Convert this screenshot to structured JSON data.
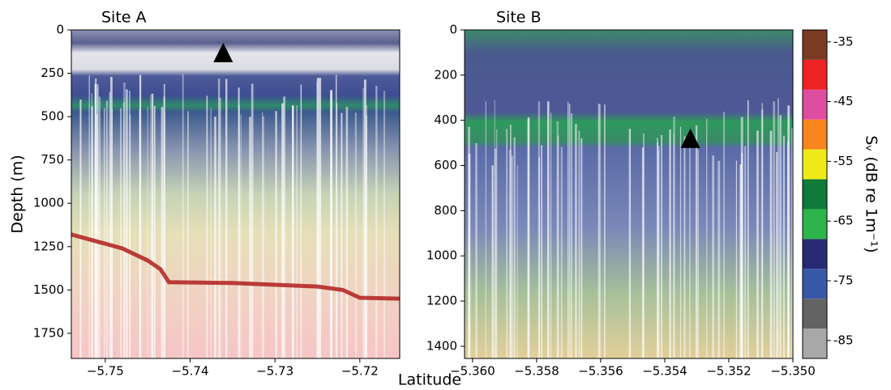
{
  "chart_data": [
    {
      "type": "echogram",
      "title": "Site A",
      "ylabel": "Depth (m)",
      "xlabel": "Latitude",
      "xlim": [
        -5.754,
        -5.7153
      ],
      "xticks": [
        {
          "value": -5.75,
          "label": "−5.75"
        },
        {
          "value": -5.74,
          "label": "−5.74"
        },
        {
          "value": -5.73,
          "label": "−5.73"
        },
        {
          "value": -5.72,
          "label": "−5.72"
        }
      ],
      "ylim": [
        1895,
        0
      ],
      "yticks": [
        0,
        250,
        500,
        750,
        1000,
        1250,
        1500,
        1750
      ],
      "markers": {
        "x": [
          -5.7361
        ],
        "y": [
          135
        ],
        "color": "#000000"
      },
      "series": [
        {
          "color": "#b01e1e",
          "x": [
            -5.754,
            -5.748,
            -5.745,
            -5.7435,
            -5.7425,
            -5.735,
            -5.725,
            -5.722,
            -5.72,
            -5.7153
          ],
          "values": [
            1180,
            1260,
            1330,
            1380,
            1455,
            1460,
            1480,
            1500,
            1545,
            1550
          ]
        }
      ]
    },
    {
      "type": "echogram",
      "title": "Site B",
      "xlim": [
        -5.36025,
        -5.35
      ],
      "xticks": [
        {
          "value": -5.36,
          "label": "−5.360"
        },
        {
          "value": -5.358,
          "label": "−5.358"
        },
        {
          "value": -5.356,
          "label": "−5.356"
        },
        {
          "value": -5.354,
          "label": "−5.354"
        },
        {
          "value": -5.352,
          "label": "−5.352"
        },
        {
          "value": -5.35,
          "label": "−5.350"
        }
      ],
      "ylim": [
        1454,
        0
      ],
      "yticks": [
        0,
        200,
        400,
        600,
        800,
        1000,
        1200,
        1400
      ],
      "markers": {
        "x": [
          -5.3532
        ],
        "y": [
          483
        ],
        "color": "#000000"
      }
    },
    {
      "type": "colorbar",
      "label": "Sᵥ (dB re 1m⁻¹)",
      "bins": [
        -88,
        -83,
        -78,
        -73,
        -68,
        -63,
        -58,
        -53,
        -48,
        -43,
        -38,
        -33
      ],
      "colors": [
        "#a8a8a8",
        "#636363",
        "#3a58a8",
        "#282a74",
        "#2db44a",
        "#0f7a3a",
        "#eeea1a",
        "#f7861f",
        "#df4da0",
        "#ee2222",
        "#7b3b25"
      ],
      "yticks": [
        -85,
        -75,
        -65,
        -55,
        -45,
        -35
      ]
    }
  ]
}
